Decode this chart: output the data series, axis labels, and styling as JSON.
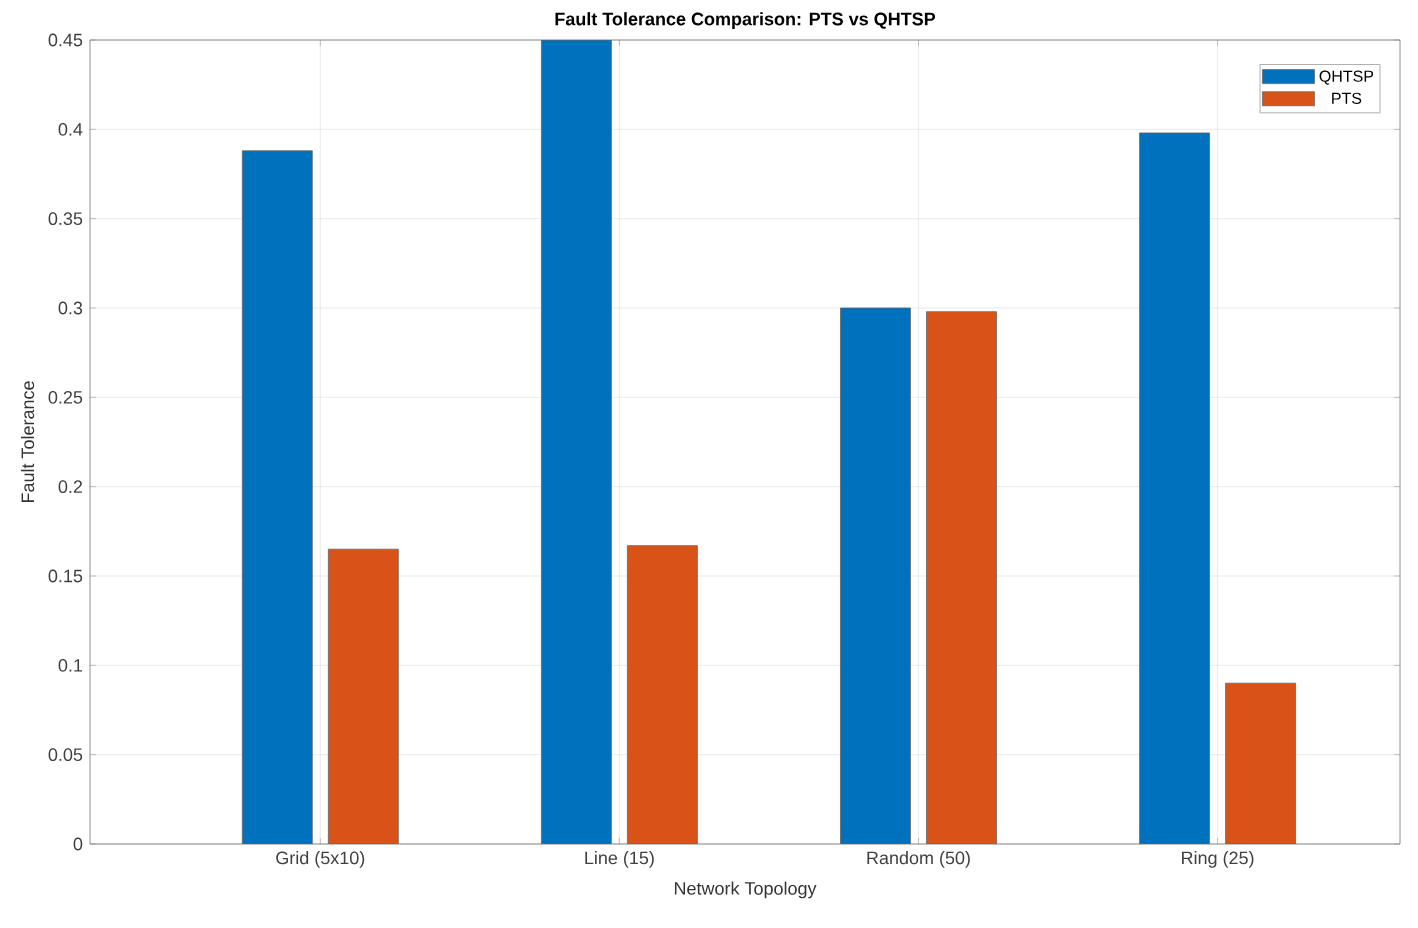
{
  "chart_data": {
    "type": "bar",
    "title": "Fault Tolerance Comparison: PTS vs QHTSP",
    "xlabel": "Network Topology",
    "ylabel": "Fault Tolerance",
    "categories": [
      "Grid (5x10)",
      "Line (15)",
      "Random (50)",
      "Ring (25)"
    ],
    "series": [
      {
        "name": "QHTSP",
        "color": "#0072bd",
        "values": [
          0.388,
          0.45,
          0.3,
          0.398
        ]
      },
      {
        "name": "PTS",
        "color": "#d95319",
        "values": [
          0.165,
          0.167,
          0.298,
          0.09
        ]
      }
    ],
    "ylim": [
      0,
      0.45
    ],
    "yticks": [
      0,
      0.05,
      0.1,
      0.15,
      0.2,
      0.25,
      0.3,
      0.35,
      0.4,
      0.45
    ],
    "grid": true,
    "legend": "top right"
  }
}
